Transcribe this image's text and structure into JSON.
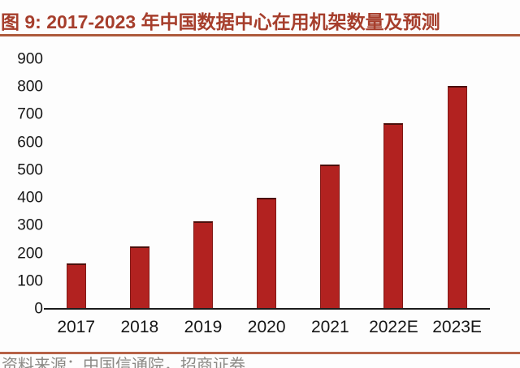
{
  "title": {
    "text": "图 9:  2017-2023 年中国数据中心在用机架数量及预测"
  },
  "source_note": "资料来源：中国信通院，招商证券",
  "colors": {
    "background": "#fdfdfd",
    "title_text": "#a63e2c",
    "title_underline": "#ad5a3c",
    "bar_fill": "#b22220",
    "bar_edge": "#4a100c",
    "axis_line": "#1c1c1c",
    "tick_label": "#161616",
    "separator": "#b66247",
    "source_text": "#8c8a86"
  },
  "chart_data": {
    "type": "bar",
    "title": "图 9: 2017-2023 年中国数据中心在用机架数量及预测",
    "categories": [
      "2017",
      "2018",
      "2019",
      "2020",
      "2021",
      "2022E",
      "2023E"
    ],
    "values": [
      165,
      225,
      315,
      400,
      520,
      670,
      805
    ],
    "xlabel": "",
    "ylabel": "",
    "ylim": [
      0,
      900
    ],
    "ytick_step": 100,
    "ytick_labels": [
      "0",
      "100",
      "200",
      "300",
      "400",
      "500",
      "600",
      "700",
      "800",
      "900"
    ],
    "grid": false,
    "legend": null,
    "series_color": "#b22220"
  }
}
